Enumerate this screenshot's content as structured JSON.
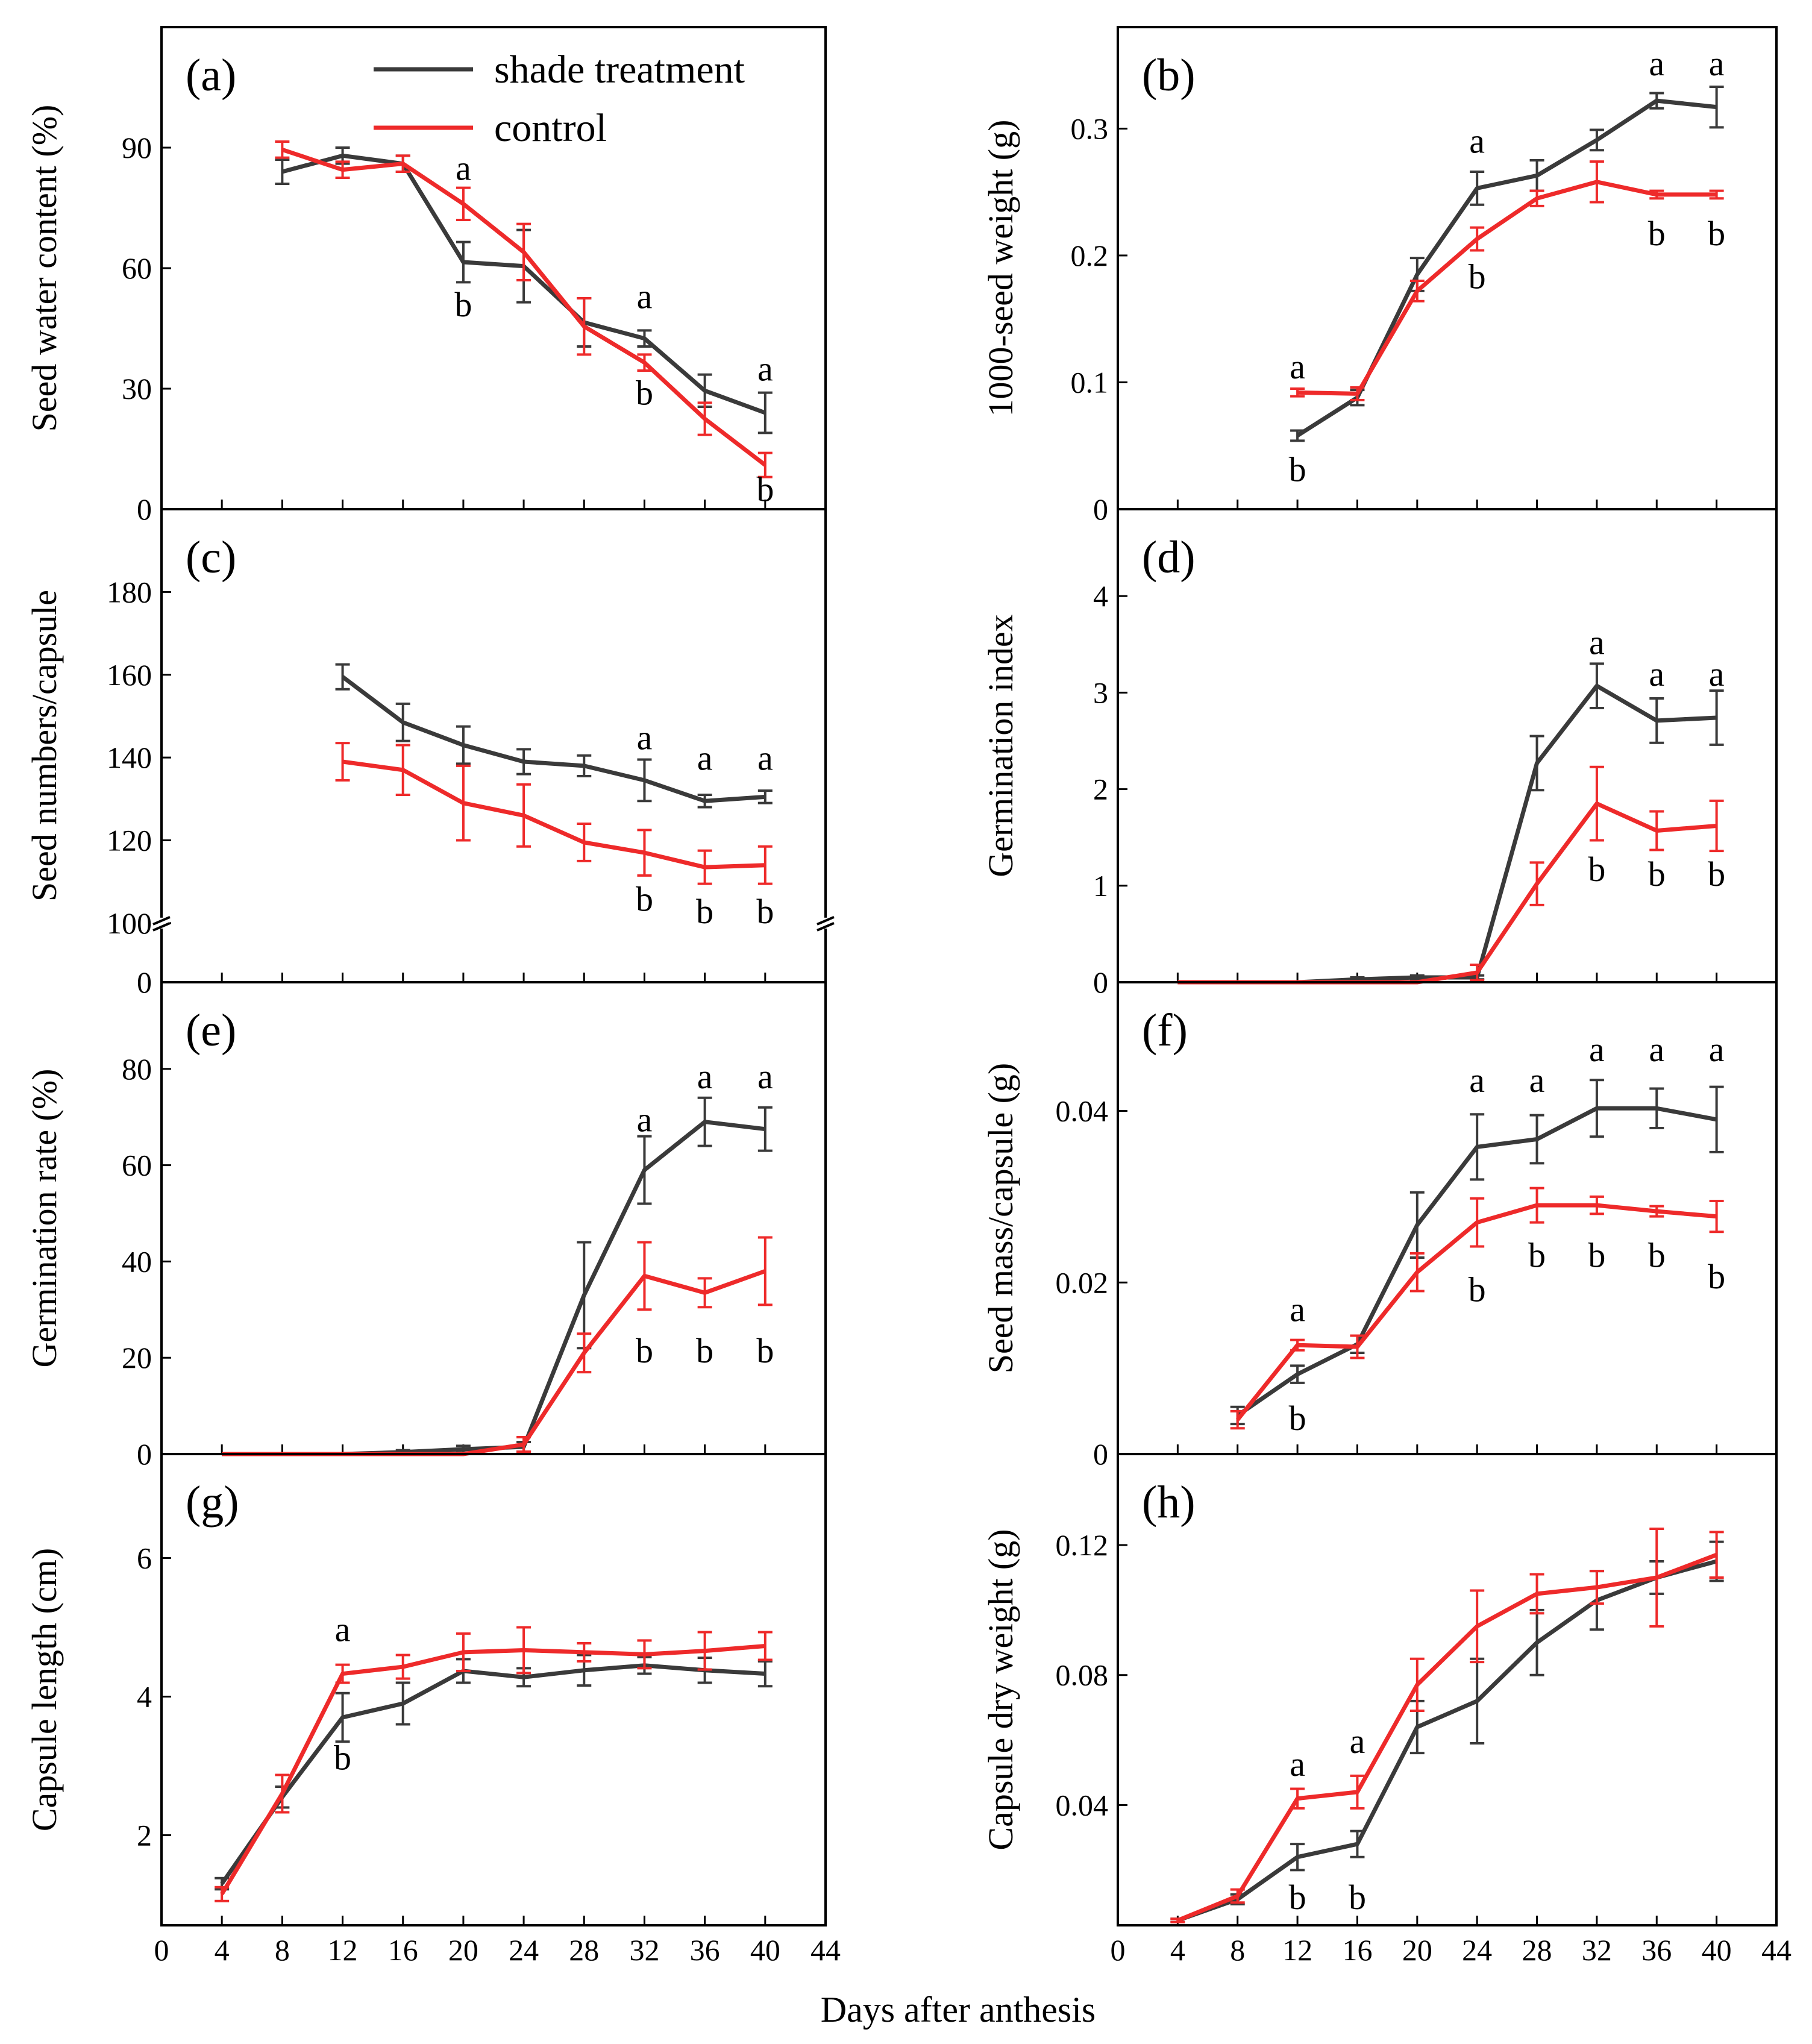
{
  "figure": {
    "xlabel": "Days after anthesis",
    "legend": {
      "placement": "top-right of panel (a)",
      "entries": [
        {
          "label": "shade treatment",
          "color": "#3a3a3a"
        },
        {
          "label": "control",
          "color": "#ee2a2a"
        }
      ]
    },
    "colors": {
      "shade": "#3a3a3a",
      "control": "#ee2a2a"
    }
  },
  "chart_data": [
    {
      "type": "line",
      "panel": "(a)",
      "xlabel": "",
      "ylabel": "Seed water content (%)",
      "xlim": [
        0,
        44
      ],
      "ylim": [
        0,
        120
      ],
      "yticks": [
        0,
        30,
        60,
        90
      ],
      "xticks": [
        0,
        4,
        8,
        12,
        16,
        20,
        24,
        28,
        32,
        36,
        40,
        44
      ],
      "series": [
        {
          "name": "shade treatment",
          "x": [
            8,
            12,
            16,
            20,
            24,
            28,
            32,
            36,
            40
          ],
          "values": [
            84,
            88,
            86,
            61.5,
            60.5,
            46.5,
            42.5,
            29.5,
            24
          ],
          "err": [
            3,
            2,
            2,
            5,
            9,
            6,
            2,
            4,
            5
          ]
        },
        {
          "name": "control",
          "x": [
            8,
            12,
            16,
            20,
            24,
            28,
            32,
            36,
            40
          ],
          "values": [
            89.5,
            84.5,
            86,
            76,
            64,
            45.5,
            36.5,
            22.5,
            11
          ],
          "err": [
            2,
            2,
            2,
            4,
            7,
            7,
            2,
            4,
            3
          ]
        }
      ],
      "annotations": [
        {
          "x": 20,
          "y": 82,
          "text": "a"
        },
        {
          "x": 20,
          "y": 48,
          "text": "b"
        },
        {
          "x": 32,
          "y": 50,
          "text": "a"
        },
        {
          "x": 32,
          "y": 26,
          "text": "b"
        },
        {
          "x": 40,
          "y": 32,
          "text": "a"
        },
        {
          "x": 40,
          "y": 2,
          "text": "b"
        }
      ]
    },
    {
      "type": "line",
      "panel": "(b)",
      "xlabel": "",
      "ylabel": "1000-seed weight (g)",
      "xlim": [
        0,
        44
      ],
      "ylim": [
        0,
        0.38
      ],
      "yticks": [
        0,
        0.1,
        0.2,
        0.3
      ],
      "yticklabels": [
        "0",
        "0.1",
        "0.2",
        "0.3"
      ],
      "xticks": [
        0,
        4,
        8,
        12,
        16,
        20,
        24,
        28,
        32,
        36,
        40,
        44
      ],
      "series": [
        {
          "name": "shade treatment",
          "x": [
            12,
            16,
            20,
            24,
            28,
            32,
            36,
            40
          ],
          "values": [
            0.058,
            0.088,
            0.185,
            0.253,
            0.263,
            0.291,
            0.322,
            0.317
          ],
          "err": [
            0.004,
            0.006,
            0.013,
            0.013,
            0.012,
            0.008,
            0.006,
            0.016
          ]
        },
        {
          "name": "control",
          "x": [
            12,
            16,
            20,
            24,
            28,
            32,
            36,
            40
          ],
          "values": [
            0.092,
            0.091,
            0.172,
            0.213,
            0.245,
            0.258,
            0.248,
            0.248
          ],
          "err": [
            0.003,
            0.005,
            0.008,
            0.009,
            0.006,
            0.016,
            0.003,
            0.003
          ]
        }
      ],
      "annotations": [
        {
          "x": 12,
          "y": 0.103,
          "text": "a"
        },
        {
          "x": 12,
          "y": 0.022,
          "text": "b"
        },
        {
          "x": 24,
          "y": 0.281,
          "text": "a"
        },
        {
          "x": 24,
          "y": 0.174,
          "text": "b"
        },
        {
          "x": 36,
          "y": 0.342,
          "text": "a"
        },
        {
          "x": 36,
          "y": 0.208,
          "text": "b"
        },
        {
          "x": 40,
          "y": 0.342,
          "text": "a"
        },
        {
          "x": 40,
          "y": 0.208,
          "text": "b"
        }
      ]
    },
    {
      "type": "line",
      "panel": "(c)",
      "xlabel": "",
      "ylabel": "Seed numbers/capsule",
      "xlim": [
        0,
        44
      ],
      "ylim": [
        0,
        200
      ],
      "broken_axis": true,
      "yticks": [
        0,
        100,
        120,
        140,
        160,
        180
      ],
      "xticks": [
        0,
        4,
        8,
        12,
        16,
        20,
        24,
        28,
        32,
        36,
        40,
        44
      ],
      "series": [
        {
          "name": "shade treatment",
          "x": [
            12,
            16,
            20,
            24,
            28,
            32,
            36,
            40
          ],
          "values": [
            159.5,
            148.5,
            143,
            139,
            138,
            134.5,
            129.5,
            130.5
          ],
          "err": [
            3,
            4.5,
            4.5,
            3,
            2.5,
            5,
            1.5,
            1.5
          ]
        },
        {
          "name": "control",
          "x": [
            12,
            16,
            20,
            24,
            28,
            32,
            36,
            40
          ],
          "values": [
            139,
            137,
            129,
            126,
            119.5,
            117,
            113.5,
            114
          ],
          "err": [
            4.5,
            6,
            9,
            7.5,
            4.5,
            5.5,
            4,
            4.5
          ]
        }
      ],
      "annotations": [
        {
          "x": 32,
          "y": 142,
          "text": "a"
        },
        {
          "x": 32,
          "y": 103,
          "text": "b"
        },
        {
          "x": 36,
          "y": 137,
          "text": "a"
        },
        {
          "x": 36,
          "y": 100,
          "text": "b"
        },
        {
          "x": 40,
          "y": 137,
          "text": "a"
        },
        {
          "x": 40,
          "y": 100,
          "text": "b"
        }
      ]
    },
    {
      "type": "line",
      "panel": "(d)",
      "xlabel": "",
      "ylabel": "Germination index",
      "xlim": [
        0,
        44
      ],
      "ylim": [
        0,
        4.9
      ],
      "yticks": [
        0,
        1,
        2,
        3,
        4
      ],
      "xticks": [
        0,
        4,
        8,
        12,
        16,
        20,
        24,
        28,
        32,
        36,
        40,
        44
      ],
      "series": [
        {
          "name": "shade treatment",
          "x": [
            4,
            8,
            12,
            16,
            20,
            24,
            28,
            32,
            36,
            40
          ],
          "values": [
            0,
            0,
            0,
            0.03,
            0.05,
            0.05,
            2.27,
            3.07,
            2.71,
            2.74
          ],
          "err": [
            0,
            0,
            0,
            0.02,
            0.02,
            0.02,
            0.28,
            0.23,
            0.23,
            0.28
          ]
        },
        {
          "name": "control",
          "x": [
            4,
            8,
            12,
            16,
            20,
            24,
            28,
            32,
            36,
            40
          ],
          "values": [
            0,
            0,
            0,
            0,
            0,
            0.1,
            1.02,
            1.85,
            1.57,
            1.62
          ],
          "err": [
            0,
            0,
            0,
            0,
            0,
            0.08,
            0.22,
            0.38,
            0.2,
            0.26
          ]
        }
      ],
      "annotations": [
        {
          "x": 32,
          "y": 3.4,
          "text": "a"
        },
        {
          "x": 32,
          "y": 1.05,
          "text": "b"
        },
        {
          "x": 36,
          "y": 3.07,
          "text": "a"
        },
        {
          "x": 36,
          "y": 1.0,
          "text": "b"
        },
        {
          "x": 40,
          "y": 3.07,
          "text": "a"
        },
        {
          "x": 40,
          "y": 1.0,
          "text": "b"
        }
      ]
    },
    {
      "type": "line",
      "panel": "(e)",
      "xlabel": "",
      "ylabel": "Germination rate (%)",
      "xlim": [
        0,
        44
      ],
      "ylim": [
        0,
        98
      ],
      "yticks": [
        0,
        20,
        40,
        60,
        80
      ],
      "xticks": [
        0,
        4,
        8,
        12,
        16,
        20,
        24,
        28,
        32,
        36,
        40,
        44
      ],
      "series": [
        {
          "name": "shade treatment",
          "x": [
            4,
            8,
            12,
            16,
            20,
            24,
            28,
            32,
            36,
            40
          ],
          "values": [
            0,
            0,
            0,
            0.4,
            1,
            1.5,
            33,
            59,
            69,
            67.5
          ],
          "err": [
            0,
            0,
            0,
            0.4,
            0.7,
            1,
            11,
            7,
            5,
            4.5
          ]
        },
        {
          "name": "control",
          "x": [
            4,
            8,
            12,
            16,
            20,
            24,
            28,
            32,
            36,
            40
          ],
          "values": [
            0,
            0,
            0,
            0,
            0,
            2,
            21,
            37,
            33.5,
            38
          ],
          "err": [
            0,
            0,
            0,
            0,
            0,
            1.5,
            4,
            7,
            3,
            7
          ]
        }
      ],
      "annotations": [
        {
          "x": 32,
          "y": 67,
          "text": "a"
        },
        {
          "x": 32,
          "y": 19,
          "text": "b"
        },
        {
          "x": 36,
          "y": 76,
          "text": "a"
        },
        {
          "x": 36,
          "y": 19,
          "text": "b"
        },
        {
          "x": 40,
          "y": 76,
          "text": "a"
        },
        {
          "x": 40,
          "y": 19,
          "text": "b"
        }
      ]
    },
    {
      "type": "line",
      "panel": "(f)",
      "xlabel": "",
      "ylabel": "Seed mass/capsule (g)",
      "xlim": [
        0,
        44
      ],
      "ylim": [
        0,
        0.055
      ],
      "yticks": [
        0,
        0.02,
        0.04
      ],
      "yticklabels": [
        "0",
        "0.02",
        "0.04"
      ],
      "xticks": [
        0,
        4,
        8,
        12,
        16,
        20,
        24,
        28,
        32,
        36,
        40,
        44
      ],
      "series": [
        {
          "name": "shade treatment",
          "x": [
            8,
            12,
            16,
            20,
            24,
            28,
            32,
            36,
            40
          ],
          "values": [
            0.0045,
            0.0093,
            0.0128,
            0.0267,
            0.0358,
            0.0367,
            0.0403,
            0.0403,
            0.039
          ],
          "err": [
            0.001,
            0.001,
            0.001,
            0.0038,
            0.0038,
            0.0028,
            0.0033,
            0.0023,
            0.0038
          ]
        },
        {
          "name": "control",
          "x": [
            8,
            12,
            16,
            20,
            24,
            28,
            32,
            36,
            40
          ],
          "values": [
            0.004,
            0.0127,
            0.0125,
            0.0212,
            0.027,
            0.029,
            0.029,
            0.0283,
            0.0277
          ],
          "err": [
            0.001,
            0.0006,
            0.0013,
            0.0022,
            0.0028,
            0.002,
            0.001,
            0.0006,
            0.0018
          ]
        }
      ],
      "annotations": [
        {
          "x": 12,
          "y": 0.0155,
          "text": "a"
        },
        {
          "x": 12,
          "y": 0.0028,
          "text": "b"
        },
        {
          "x": 24,
          "y": 0.0422,
          "text": "a"
        },
        {
          "x": 24,
          "y": 0.0178,
          "text": "b"
        },
        {
          "x": 28,
          "y": 0.0422,
          "text": "a"
        },
        {
          "x": 28,
          "y": 0.0218,
          "text": "b"
        },
        {
          "x": 32,
          "y": 0.0458,
          "text": "a"
        },
        {
          "x": 32,
          "y": 0.0218,
          "text": "b"
        },
        {
          "x": 36,
          "y": 0.0458,
          "text": "a"
        },
        {
          "x": 36,
          "y": 0.0218,
          "text": "b"
        },
        {
          "x": 40,
          "y": 0.0458,
          "text": "a"
        },
        {
          "x": 40,
          "y": 0.0193,
          "text": "b"
        }
      ]
    },
    {
      "type": "line",
      "panel": "(g)",
      "xlabel": "",
      "ylabel": "Capsule length (cm)",
      "xlim": [
        0,
        44
      ],
      "ylim": [
        0.7,
        7.5
      ],
      "yticks": [
        2,
        4,
        6
      ],
      "xticks": [
        0,
        4,
        8,
        12,
        16,
        20,
        24,
        28,
        32,
        36,
        40,
        44
      ],
      "series": [
        {
          "name": "shade treatment",
          "x": [
            4,
            8,
            12,
            16,
            20,
            24,
            28,
            32,
            36,
            40
          ],
          "values": [
            1.3,
            2.55,
            3.7,
            3.9,
            4.37,
            4.28,
            4.38,
            4.45,
            4.38,
            4.33
          ],
          "err": [
            0.08,
            0.15,
            0.35,
            0.3,
            0.17,
            0.13,
            0.22,
            0.12,
            0.18,
            0.18
          ]
        },
        {
          "name": "control",
          "x": [
            4,
            8,
            12,
            16,
            20,
            24,
            28,
            32,
            36,
            40
          ],
          "values": [
            1.15,
            2.6,
            4.33,
            4.43,
            4.64,
            4.67,
            4.64,
            4.61,
            4.66,
            4.73
          ],
          "err": [
            0.1,
            0.27,
            0.13,
            0.17,
            0.27,
            0.33,
            0.13,
            0.2,
            0.27,
            0.2
          ]
        }
      ],
      "annotations": [
        {
          "x": 12,
          "y": 4.8,
          "text": "a"
        },
        {
          "x": 12,
          "y": 2.95,
          "text": "b"
        }
      ]
    },
    {
      "type": "line",
      "panel": "(h)",
      "xlabel": "",
      "ylabel": "Capsule dry weight (g)",
      "xlim": [
        0,
        44
      ],
      "ylim": [
        0.003,
        0.148
      ],
      "yticks": [
        0.04,
        0.08,
        0.12
      ],
      "yticklabels": [
        "0.04",
        "0.08",
        "0.12"
      ],
      "xticks": [
        0,
        4,
        8,
        12,
        16,
        20,
        24,
        28,
        32,
        36,
        40,
        44
      ],
      "series": [
        {
          "name": "shade treatment",
          "x": [
            4,
            8,
            12,
            16,
            20,
            24,
            28,
            32,
            36,
            40
          ],
          "values": [
            0.0045,
            0.011,
            0.024,
            0.028,
            0.064,
            0.072,
            0.09,
            0.103,
            0.11,
            0.115
          ],
          "err": [
            0.0005,
            0.0015,
            0.004,
            0.004,
            0.008,
            0.013,
            0.01,
            0.009,
            0.005,
            0.006
          ]
        },
        {
          "name": "control",
          "x": [
            4,
            8,
            12,
            16,
            20,
            24,
            28,
            32,
            36,
            40
          ],
          "values": [
            0.0045,
            0.012,
            0.042,
            0.044,
            0.077,
            0.095,
            0.105,
            0.107,
            0.11,
            0.117
          ],
          "err": [
            0.0005,
            0.002,
            0.003,
            0.005,
            0.008,
            0.011,
            0.006,
            0.005,
            0.015,
            0.007
          ]
        }
      ],
      "annotations": [
        {
          "x": 12,
          "y": 0.049,
          "text": "a"
        },
        {
          "x": 12,
          "y": 0.008,
          "text": "b"
        },
        {
          "x": 16,
          "y": 0.056,
          "text": "a"
        },
        {
          "x": 16,
          "y": 0.008,
          "text": "b"
        }
      ]
    }
  ]
}
